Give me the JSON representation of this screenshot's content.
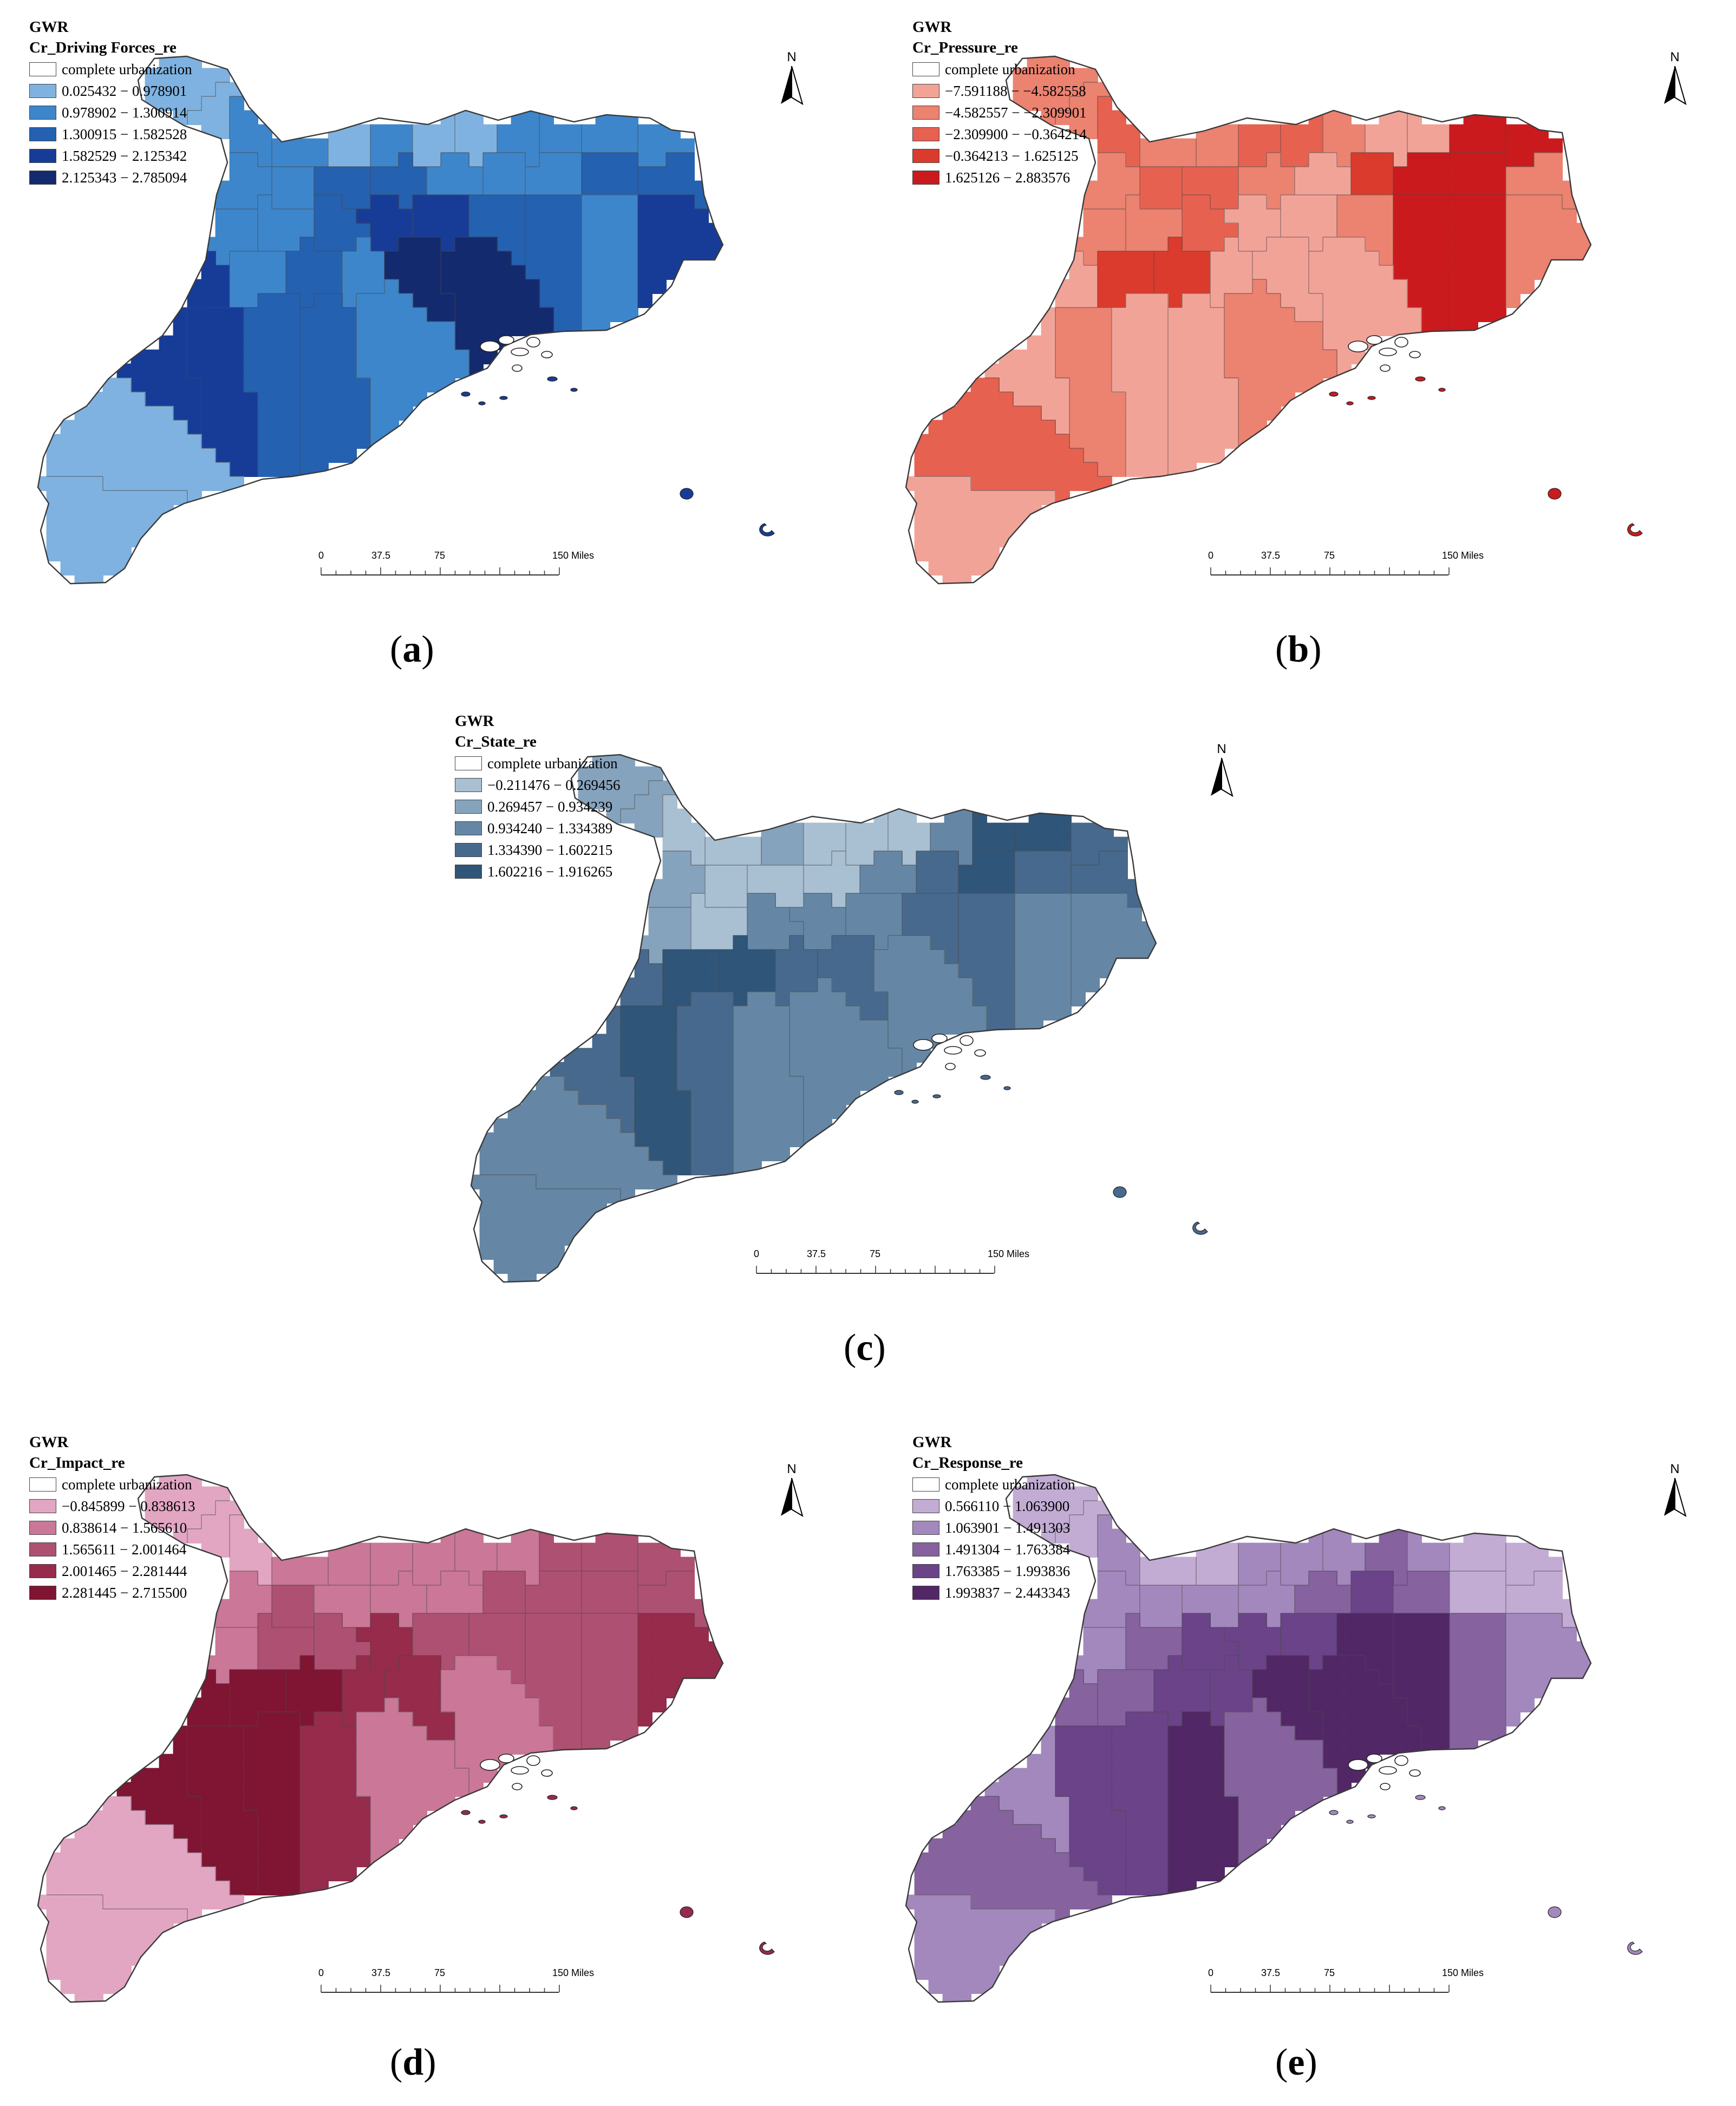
{
  "common": {
    "model_label": "GWR",
    "no_data_label": "complete urbanization",
    "north_label": "N",
    "scale_ticks": [
      "0",
      "37.5",
      "75",
      "150 Miles"
    ]
  },
  "panels": [
    {
      "id": "a",
      "field": "Cr_Driving Forces_re",
      "caption_letter": "a",
      "classes": [
        {
          "range": "0.025432 − 0.978901",
          "color": "#7fb2e0"
        },
        {
          "range": "0.978902 − 1.300914",
          "color": "#3d86cb"
        },
        {
          "range": "1.300915 − 1.582528",
          "color": "#2461b0"
        },
        {
          "range": "1.582529 − 2.125342",
          "color": "#173c98"
        },
        {
          "range": "2.125343 − 2.785094",
          "color": "#142a6e"
        }
      ],
      "region_classes": [
        0,
        0,
        1,
        1,
        0,
        1,
        0,
        0,
        1,
        1,
        1,
        1,
        1,
        1,
        2,
        2,
        1,
        1,
        1,
        2,
        2,
        1,
        1,
        2,
        3,
        3,
        2,
        2,
        1,
        3,
        3,
        1,
        2,
        1,
        4,
        4,
        3,
        3,
        2,
        2,
        1,
        0,
        0
      ],
      "island_color": "#173c98"
    },
    {
      "id": "b",
      "field": "Cr_Pressure_re",
      "caption_letter": "b",
      "classes": [
        {
          "range": "−7.591188 − −4.582558",
          "color": "#f2a398"
        },
        {
          "range": "−4.582557 − −2.309901",
          "color": "#ec8270"
        },
        {
          "range": "−2.309900 − −0.364214",
          "color": "#e76150"
        },
        {
          "range": "−0.364213 − 1.625125",
          "color": "#da3b2c"
        },
        {
          "range": "1.625126 − 2.883576",
          "color": "#cb1a1d"
        }
      ],
      "region_classes": [
        1,
        1,
        2,
        1,
        1,
        2,
        2,
        1,
        0,
        0,
        4,
        4,
        1,
        2,
        2,
        1,
        0,
        3,
        4,
        4,
        1,
        1,
        1,
        2,
        0,
        0,
        1,
        4,
        4,
        1,
        0,
        3,
        3,
        0,
        0,
        0,
        0,
        1,
        0,
        0,
        1,
        2,
        0
      ],
      "island_color": "#cb1a1d"
    },
    {
      "id": "c",
      "field": "Cr_State_re",
      "caption_letter": "c",
      "classes": [
        {
          "range": "−0.211476 − 0.269456",
          "color": "#a9bfd2"
        },
        {
          "range": "0.269457 − 0.934239",
          "color": "#86a3bd"
        },
        {
          "range": "0.934240 − 1.334389",
          "color": "#6587a5"
        },
        {
          "range": "1.334390 − 1.602215",
          "color": "#47698d"
        },
        {
          "range": "1.602216 − 1.916265",
          "color": "#2f5579"
        }
      ],
      "region_classes": [
        1,
        1,
        0,
        0,
        1,
        0,
        0,
        0,
        2,
        4,
        4,
        3,
        1,
        0,
        0,
        0,
        2,
        3,
        4,
        3,
        3,
        1,
        0,
        2,
        2,
        2,
        3,
        3,
        2,
        2,
        3,
        4,
        4,
        3,
        3,
        2,
        3,
        4,
        3,
        2,
        2,
        2,
        2
      ],
      "island_color": "#47698d"
    },
    {
      "id": "d",
      "field": "Cr_Impact_re",
      "caption_letter": "d",
      "classes": [
        {
          "range": "−0.845899 − 0.838613",
          "color": "#e2a6c3"
        },
        {
          "range": "0.838614 − 1.565610",
          "color": "#cb7797"
        },
        {
          "range": "1.565611 − 2.001464",
          "color": "#ae5071"
        },
        {
          "range": "2.001465 − 2.281444",
          "color": "#962b4c"
        },
        {
          "range": "2.281445 − 2.715500",
          "color": "#7f1533"
        }
      ],
      "region_classes": [
        0,
        0,
        0,
        1,
        1,
        1,
        1,
        1,
        1,
        2,
        2,
        2,
        1,
        2,
        1,
        1,
        1,
        2,
        2,
        2,
        2,
        1,
        2,
        2,
        3,
        2,
        2,
        2,
        2,
        3,
        4,
        4,
        4,
        3,
        3,
        1,
        4,
        4,
        4,
        3,
        1,
        0,
        0
      ],
      "island_color": "#962b4c"
    },
    {
      "id": "e",
      "field": "Cr_Response_re",
      "caption_letter": "e",
      "classes": [
        {
          "range": "0.566110 − 1.063900",
          "color": "#c2acd4"
        },
        {
          "range": "1.063901 − 1.491303",
          "color": "#a388bd"
        },
        {
          "range": "1.491304 − 1.763384",
          "color": "#86629f"
        },
        {
          "range": "1.763385 − 1.993836",
          "color": "#6a4388"
        },
        {
          "range": "1.993837 − 2.443343",
          "color": "#522766"
        }
      ],
      "region_classes": [
        0,
        0,
        1,
        0,
        0,
        1,
        1,
        1,
        2,
        1,
        0,
        0,
        1,
        1,
        1,
        1,
        2,
        3,
        2,
        0,
        0,
        1,
        2,
        3,
        3,
        3,
        4,
        4,
        2,
        1,
        2,
        2,
        3,
        3,
        4,
        4,
        1,
        3,
        3,
        4,
        2,
        2,
        1
      ],
      "island_color": "#a388bd"
    }
  ]
}
